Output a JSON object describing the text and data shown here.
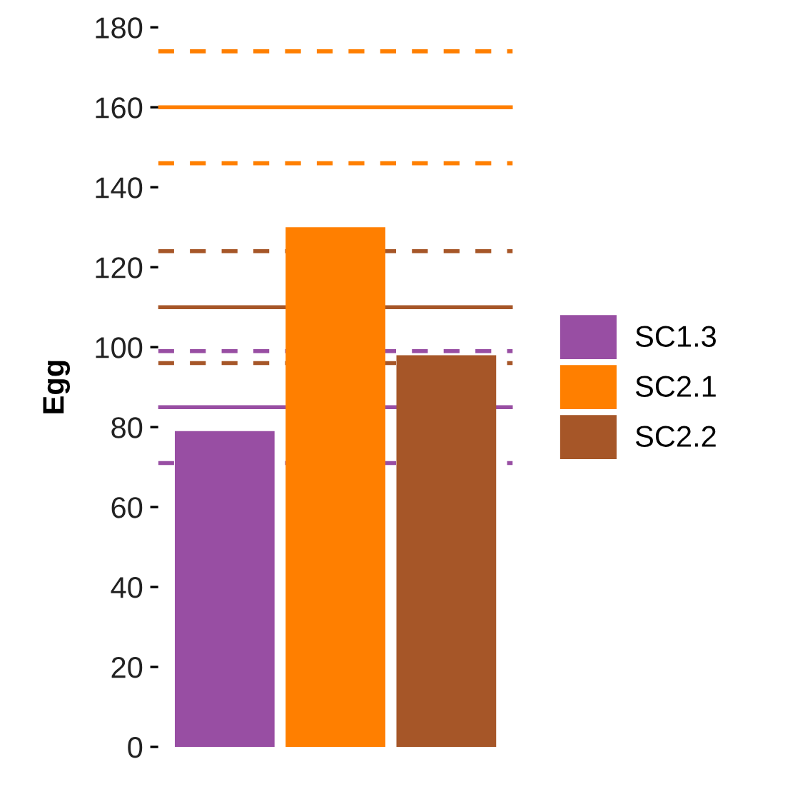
{
  "chart_data": {
    "type": "bar",
    "ylabel": "Egg",
    "categories": [
      null,
      null,
      null
    ],
    "series": [
      {
        "name": "SC1.3",
        "color": "#984ea3",
        "values": [
          79,
          null,
          null
        ]
      },
      {
        "name": "SC2.1",
        "color": "#ff7f00",
        "values": [
          null,
          130,
          null
        ]
      },
      {
        "name": "SC2.2",
        "color": "#a65628",
        "values": [
          null,
          null,
          98
        ]
      }
    ],
    "ylim": [
      0,
      180
    ],
    "yticks": [
      0,
      20,
      40,
      60,
      80,
      100,
      120,
      140,
      160,
      180
    ],
    "ref_lines": [
      {
        "axis": "y",
        "value": 85,
        "color": "#984ea3",
        "line_style": "solid"
      },
      {
        "axis": "y",
        "value": 71,
        "color": "#984ea3",
        "line_style": "dashed"
      },
      {
        "axis": "y",
        "value": 99,
        "color": "#984ea3",
        "line_style": "dashed"
      },
      {
        "axis": "y",
        "value": 160,
        "color": "#ff7f00",
        "line_style": "solid"
      },
      {
        "axis": "y",
        "value": 146,
        "color": "#ff7f00",
        "line_style": "dashed"
      },
      {
        "axis": "y",
        "value": 174,
        "color": "#ff7f00",
        "line_style": "dashed"
      },
      {
        "axis": "y",
        "value": 110,
        "color": "#a65628",
        "line_style": "solid"
      },
      {
        "axis": "y",
        "value": 96,
        "color": "#a65628",
        "line_style": "dashed"
      },
      {
        "axis": "y",
        "value": 124,
        "color": "#a65628",
        "line_style": "dashed"
      }
    ],
    "grid": false,
    "legend": "right"
  }
}
